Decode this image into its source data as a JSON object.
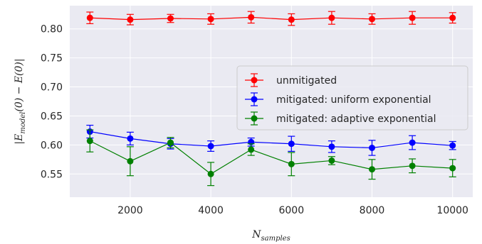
{
  "chart_data": {
    "type": "line",
    "title": "",
    "xlabel": "N",
    "xlabel_sub": "samples",
    "ylabel_main": "|E",
    "ylabel_sub": "model",
    "ylabel_rest": "(0) − E(0)|",
    "xlim": [
      500,
      10500
    ],
    "ylim": [
      0.51,
      0.84
    ],
    "xticks": [
      2000,
      4000,
      6000,
      8000,
      10000
    ],
    "yticks": [
      0.55,
      0.6,
      0.65,
      0.7,
      0.75,
      0.8
    ],
    "ytick_labels": [
      "0.55",
      "0.60",
      "0.65",
      "0.70",
      "0.75",
      "0.80"
    ],
    "grid": true,
    "legend_position": "center-right",
    "x": [
      1000,
      2000,
      3000,
      4000,
      5000,
      6000,
      7000,
      8000,
      9000,
      10000
    ],
    "series": [
      {
        "name": "unmitigated",
        "color": "#ff0000",
        "values": [
          0.819,
          0.816,
          0.818,
          0.817,
          0.82,
          0.816,
          0.819,
          0.817,
          0.819,
          0.819
        ],
        "errors": [
          0.01,
          0.009,
          0.007,
          0.009,
          0.01,
          0.01,
          0.011,
          0.009,
          0.011,
          0.009
        ]
      },
      {
        "name": "mitigated: uniform exponential",
        "color": "#0000ff",
        "values": [
          0.623,
          0.611,
          0.602,
          0.598,
          0.605,
          0.602,
          0.597,
          0.595,
          0.604,
          0.599
        ],
        "errors": [
          0.011,
          0.011,
          0.009,
          0.009,
          0.007,
          0.013,
          0.01,
          0.013,
          0.012,
          0.007
        ]
      },
      {
        "name": "mitigated: adaptive exponential",
        "color": "#008000",
        "values": [
          0.607,
          0.572,
          0.604,
          0.55,
          0.592,
          0.567,
          0.573,
          0.558,
          0.564,
          0.56
        ],
        "errors": [
          0.019,
          0.025,
          0.009,
          0.02,
          0.01,
          0.02,
          0.007,
          0.017,
          0.012,
          0.015
        ]
      }
    ]
  }
}
